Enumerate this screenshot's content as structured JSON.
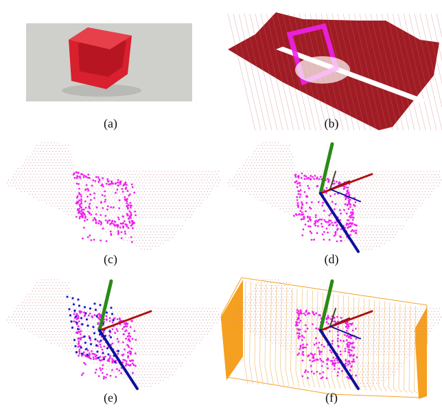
{
  "figure": {
    "panels": [
      {
        "id": "a",
        "label": "(a)",
        "content": "photo"
      },
      {
        "id": "b",
        "label": "(b)",
        "content": "dense-cloud"
      },
      {
        "id": "c",
        "label": "(c)",
        "content": "sparse-cloud"
      },
      {
        "id": "d",
        "label": "(d)",
        "content": "sparse-cloud-axes"
      },
      {
        "id": "e",
        "label": "(e)",
        "content": "sparse-cloud-axes-blue"
      },
      {
        "id": "f",
        "label": "(f)",
        "content": "sparse-cloud-axes-mesh"
      }
    ],
    "colors": {
      "surface_points": "#c9808a",
      "object_points": "#ee22ee",
      "axis_x": "#b01010",
      "axis_y": "#2a8a18",
      "axis_z": "#10109a",
      "grasp_points": "#1a1acc",
      "gripper_mesh": "#f5a020",
      "dense_surface": "#a01c24",
      "bin_red": "#d8202e",
      "photo_bg": "#cfd0cc"
    }
  }
}
